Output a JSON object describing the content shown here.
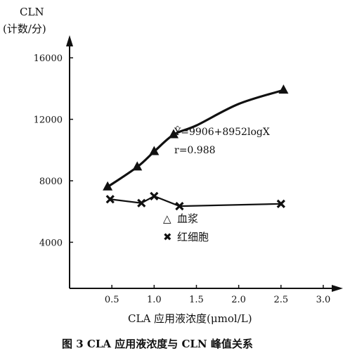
{
  "chart_data": {
    "type": "line",
    "ylabel_line1": "CLN",
    "ylabel_line2": "(计数/分)",
    "xlabel": "CLA 应用液浓度(μmol/L)",
    "caption": "图 3   CLA 应用液浓度与 CLN 峰值关系",
    "x_ticks": [
      "0.5",
      "1.0",
      "1.5",
      "2.0",
      "2.5",
      "3.0"
    ],
    "x_tick_values": [
      0.5,
      1.0,
      1.5,
      2.0,
      2.5,
      3.0
    ],
    "y_ticks": [
      "4000",
      "8000",
      "12000",
      "16000"
    ],
    "y_tick_values": [
      4000,
      8000,
      12000,
      16000
    ],
    "xlim": [
      0,
      3.15
    ],
    "ylim": [
      1000,
      17200
    ],
    "grid": false,
    "legend_position": "center-right",
    "series": [
      {
        "name": "血浆",
        "marker": "triangle",
        "label_symbol": "△",
        "x": [
          0.45,
          0.8,
          1.0,
          1.23,
          2.53
        ],
        "y": [
          7600,
          8900,
          9900,
          11000,
          13900
        ],
        "curve": [
          [
            0.45,
            7600
          ],
          [
            0.8,
            8900
          ],
          [
            1.0,
            9900
          ],
          [
            1.23,
            11000
          ],
          [
            1.5,
            11600
          ],
          [
            2.0,
            13000
          ],
          [
            2.53,
            13900
          ]
        ]
      },
      {
        "name": "红细胞",
        "marker": "x",
        "label_symbol": "✖",
        "x": [
          0.48,
          0.85,
          1.0,
          1.3,
          2.5
        ],
        "y": [
          6800,
          6550,
          7000,
          6350,
          6500
        ]
      }
    ],
    "annotation": {
      "equation": "Ŷ=9906+8952logX",
      "r": "r=0.988"
    }
  }
}
